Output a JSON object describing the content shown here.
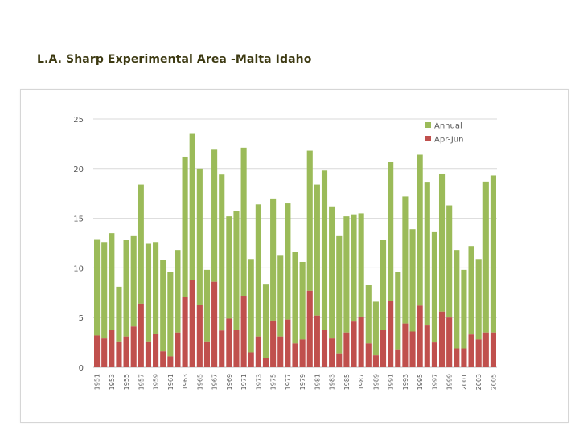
{
  "slide": {
    "title": "L.A. Sharp Experimental Area -Malta Idaho"
  },
  "colors": {
    "annual": "#9bbb59",
    "aprjun": "#c0504d",
    "grid": "#d9d9d9",
    "axis": "#bfbfbf"
  },
  "chart_data": {
    "type": "bar",
    "title": "",
    "xlabel": "",
    "ylabel": "",
    "ylim": [
      0,
      25
    ],
    "yticks": [
      0,
      5,
      10,
      15,
      20,
      25
    ],
    "grid": true,
    "legend_position": "top-right",
    "x": [
      1951,
      1952,
      1953,
      1954,
      1955,
      1956,
      1957,
      1958,
      1959,
      1960,
      1961,
      1962,
      1963,
      1964,
      1965,
      1966,
      1967,
      1968,
      1969,
      1970,
      1971,
      1972,
      1973,
      1974,
      1975,
      1976,
      1977,
      1978,
      1979,
      1980,
      1981,
      1982,
      1983,
      1984,
      1985,
      1986,
      1987,
      1988,
      1989,
      1990,
      1991,
      1992,
      1993,
      1994,
      1995,
      1996,
      1997,
      1998,
      1999,
      2000,
      2001,
      2002,
      2003,
      2004,
      2005
    ],
    "x_tick_labels": [
      "1951",
      "1953",
      "1955",
      "1957",
      "1959",
      "1961",
      "1963",
      "1965",
      "1967",
      "1969",
      "1971",
      "1973",
      "1975",
      "1977",
      "1979",
      "1981",
      "1983",
      "1985",
      "1987",
      "1989",
      "1991",
      "1993",
      "1995",
      "1997",
      "1999",
      "2001",
      "2003",
      "2005"
    ],
    "series": [
      {
        "name": "Annual",
        "values": [
          12.9,
          12.6,
          13.5,
          8.1,
          12.8,
          13.2,
          18.4,
          12.5,
          12.6,
          10.8,
          9.6,
          11.8,
          21.2,
          23.5,
          20.0,
          9.8,
          21.9,
          19.4,
          15.2,
          15.7,
          22.1,
          10.9,
          16.4,
          8.4,
          17.0,
          11.3,
          16.5,
          11.6,
          10.6,
          21.8,
          18.4,
          19.8,
          16.2,
          13.2,
          15.2,
          15.4,
          15.5,
          8.3,
          6.6,
          12.8,
          20.7,
          9.6,
          17.2,
          13.9,
          21.4,
          18.6,
          13.6,
          19.5,
          16.3,
          11.8,
          9.8,
          12.2,
          10.9,
          18.7,
          19.3
        ]
      },
      {
        "name": "Apr-Jun",
        "values": [
          3.2,
          2.9,
          3.8,
          2.6,
          3.1,
          4.1,
          6.4,
          2.6,
          3.4,
          1.6,
          1.1,
          3.5,
          7.1,
          8.8,
          6.3,
          2.6,
          8.6,
          3.7,
          4.9,
          3.8,
          7.2,
          1.5,
          3.1,
          0.9,
          4.7,
          3.1,
          4.8,
          2.4,
          2.8,
          7.7,
          5.2,
          3.8,
          2.9,
          1.4,
          3.5,
          4.6,
          5.1,
          2.4,
          1.2,
          3.8,
          6.7,
          1.8,
          4.4,
          3.6,
          6.2,
          4.2,
          2.5,
          5.6,
          5.0,
          1.9,
          1.9,
          3.3,
          2.8,
          3.5,
          3.5
        ]
      }
    ]
  }
}
